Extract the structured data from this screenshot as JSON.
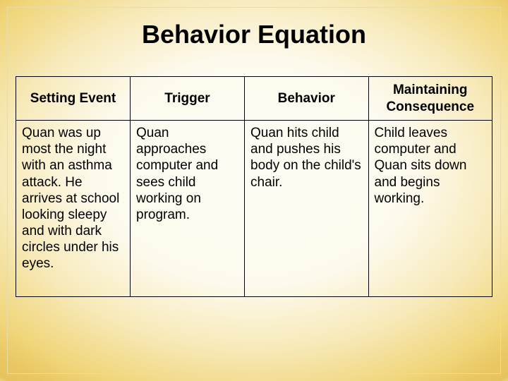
{
  "title": "Behavior Equation",
  "table": {
    "columns": [
      "Setting Event",
      "Trigger",
      "Behavior",
      "Maintaining Consequence"
    ],
    "rows": [
      [
        "Quan was up most the night with an asthma attack. He arrives at school looking sleepy and with dark circles under his eyes.",
        "Quan approaches computer and sees child working on program.",
        "Quan hits child and pushes his body on the child's chair.",
        "Child leaves computer and Quan sits down and begins working."
      ]
    ]
  },
  "style": {
    "title_fontsize": 36,
    "header_fontsize": 19,
    "cell_fontsize": 19,
    "border_color": "#000000",
    "text_color": "#000000",
    "column_widths_pct": [
      24,
      24,
      26,
      26
    ],
    "background_gradient": {
      "type": "radial",
      "stops": [
        {
          "color": "#fdfcf3",
          "at": 0
        },
        {
          "color": "#fdfaed",
          "at": 35
        },
        {
          "color": "#f7e9b8",
          "at": 55
        },
        {
          "color": "#f0d57a",
          "at": 72
        },
        {
          "color": "#e9c660",
          "at": 80
        },
        {
          "color": "#e6c35c",
          "at": 84
        },
        {
          "color": "#faf6e6",
          "at": 88
        },
        {
          "color": "#fdfcf5",
          "at": 100
        }
      ]
    },
    "inner_frame_color": "#e8dca8"
  }
}
